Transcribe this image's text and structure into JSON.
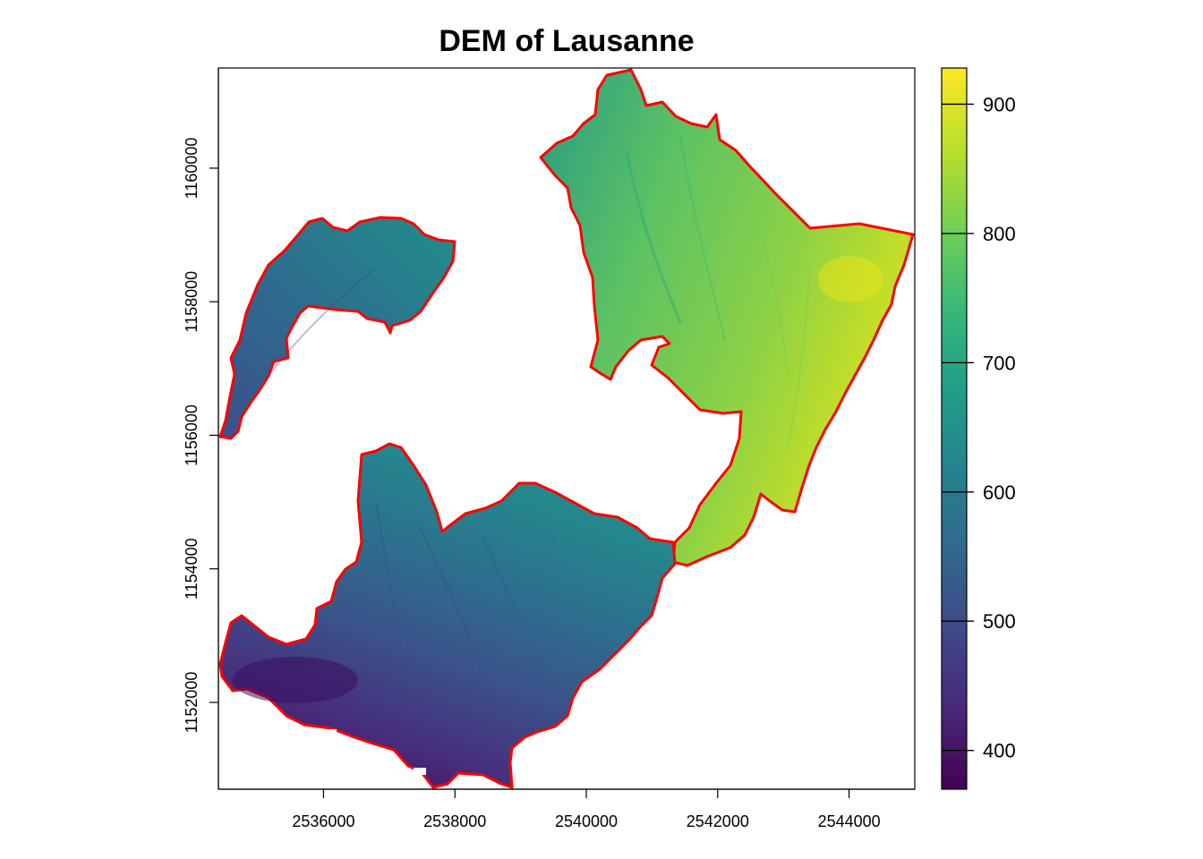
{
  "title": "DEM of Lausanne",
  "map": {
    "x_range": [
      2534400,
      2545000
    ],
    "y_range": [
      1150700,
      1161500
    ],
    "x_ticks": [
      {
        "value": 2536000,
        "label": "2536000"
      },
      {
        "value": 2538000,
        "label": "2538000"
      },
      {
        "value": 2540000,
        "label": "2540000"
      },
      {
        "value": 2542000,
        "label": "2542000"
      },
      {
        "value": 2544000,
        "label": "2544000"
      }
    ],
    "y_ticks": [
      {
        "value": 1152000,
        "label": "1152000"
      },
      {
        "value": 1154000,
        "label": "1154000"
      },
      {
        "value": 1156000,
        "label": "1156000"
      },
      {
        "value": 1158000,
        "label": "1158000"
      },
      {
        "value": 1160000,
        "label": "1160000"
      }
    ],
    "boundary_color": "#ff0000"
  },
  "legend": {
    "min": 370,
    "max": 928,
    "ticks": [
      {
        "value": 400,
        "label": "400"
      },
      {
        "value": 500,
        "label": "500"
      },
      {
        "value": 600,
        "label": "600"
      },
      {
        "value": 700,
        "label": "700"
      },
      {
        "value": 800,
        "label": "800"
      },
      {
        "value": 900,
        "label": "900"
      }
    ],
    "palette": [
      "#440154",
      "#482878",
      "#3e4989",
      "#31688e",
      "#26828e",
      "#1f9e89",
      "#35b779",
      "#6ece58",
      "#b5de2b",
      "#fde725"
    ]
  }
}
